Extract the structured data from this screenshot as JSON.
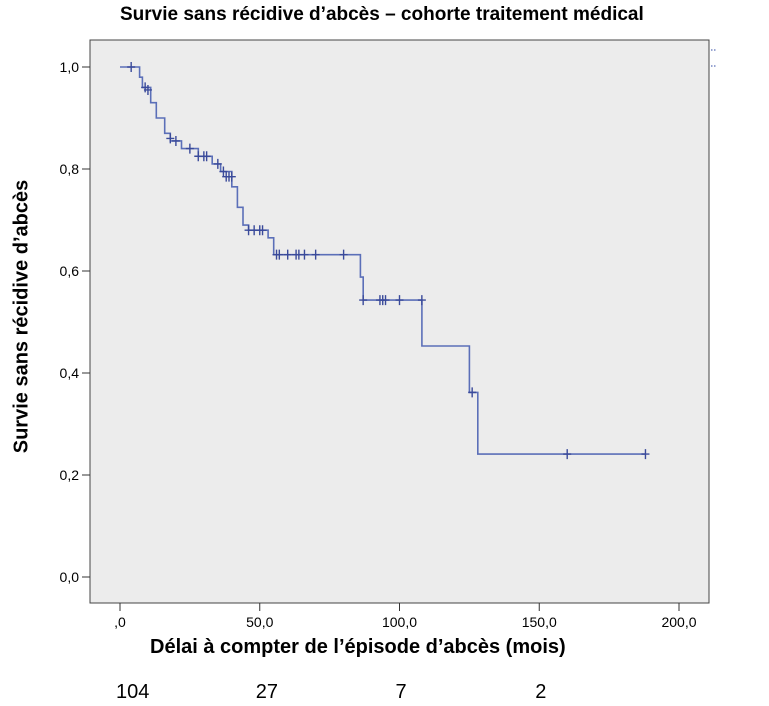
{
  "chart_data": {
    "type": "line",
    "title": "Survie sans récidive d’abcès – cohorte traitement médical",
    "xlabel": "Délai à compter de l’épisode d’abcès (mois)",
    "ylabel": "Survie sans récidive d’abcès",
    "xlim": [
      0,
      200
    ],
    "ylim": [
      0,
      1
    ],
    "x_ticks": [
      ",0",
      "50,0",
      "100,0",
      "150,0",
      "200,0"
    ],
    "y_ticks": [
      "0,0",
      "0,2",
      "0,4",
      "0,6",
      "0,8",
      "1,0"
    ],
    "grid": false,
    "series": [
      {
        "color": "#5b6fb8",
        "step": [
          [
            0,
            1.0
          ],
          [
            7,
            1.0
          ],
          [
            7,
            0.98
          ],
          [
            8,
            0.98
          ],
          [
            8,
            0.96
          ],
          [
            11,
            0.96
          ],
          [
            11,
            0.93
          ],
          [
            13,
            0.93
          ],
          [
            13,
            0.9
          ],
          [
            16,
            0.9
          ],
          [
            16,
            0.87
          ],
          [
            18,
            0.87
          ],
          [
            18,
            0.855
          ],
          [
            22,
            0.855
          ],
          [
            22,
            0.84
          ],
          [
            28,
            0.84
          ],
          [
            28,
            0.825
          ],
          [
            33,
            0.825
          ],
          [
            33,
            0.81
          ],
          [
            36,
            0.81
          ],
          [
            36,
            0.795
          ],
          [
            40,
            0.795
          ],
          [
            40,
            0.765
          ],
          [
            42,
            0.765
          ],
          [
            42,
            0.725
          ],
          [
            44,
            0.725
          ],
          [
            44,
            0.69
          ],
          [
            46,
            0.69
          ],
          [
            46,
            0.68
          ],
          [
            53,
            0.68
          ],
          [
            53,
            0.665
          ],
          [
            55,
            0.665
          ],
          [
            55,
            0.632
          ],
          [
            86,
            0.632
          ],
          [
            86,
            0.588
          ],
          [
            87,
            0.588
          ],
          [
            87,
            0.543
          ],
          [
            108,
            0.543
          ],
          [
            108,
            0.453
          ],
          [
            125,
            0.453
          ],
          [
            125,
            0.362
          ],
          [
            128,
            0.362
          ],
          [
            128,
            0.241
          ],
          [
            188,
            0.241
          ]
        ],
        "censored": [
          [
            4,
            1.0
          ],
          [
            9,
            0.96
          ],
          [
            10,
            0.955
          ],
          [
            18,
            0.86
          ],
          [
            20,
            0.855
          ],
          [
            25,
            0.84
          ],
          [
            28,
            0.825
          ],
          [
            30,
            0.825
          ],
          [
            31,
            0.825
          ],
          [
            35,
            0.81
          ],
          [
            37,
            0.795
          ],
          [
            38,
            0.785
          ],
          [
            39,
            0.785
          ],
          [
            40,
            0.785
          ],
          [
            46,
            0.68
          ],
          [
            48,
            0.68
          ],
          [
            50,
            0.68
          ],
          [
            51,
            0.68
          ],
          [
            56,
            0.632
          ],
          [
            57,
            0.632
          ],
          [
            60,
            0.632
          ],
          [
            63,
            0.632
          ],
          [
            64,
            0.632
          ],
          [
            66,
            0.632
          ],
          [
            70,
            0.632
          ],
          [
            80,
            0.632
          ],
          [
            87,
            0.543
          ],
          [
            93,
            0.543
          ],
          [
            94,
            0.543
          ],
          [
            95,
            0.543
          ],
          [
            100,
            0.543
          ],
          [
            108,
            0.543
          ],
          [
            126,
            0.362
          ],
          [
            160,
            0.241
          ],
          [
            188,
            0.241
          ]
        ]
      }
    ],
    "risk_table": [
      {
        "x": 0,
        "n": "104"
      },
      {
        "x": 50,
        "n": "27"
      },
      {
        "x": 100,
        "n": "7"
      },
      {
        "x": 150,
        "n": "2"
      }
    ]
  }
}
